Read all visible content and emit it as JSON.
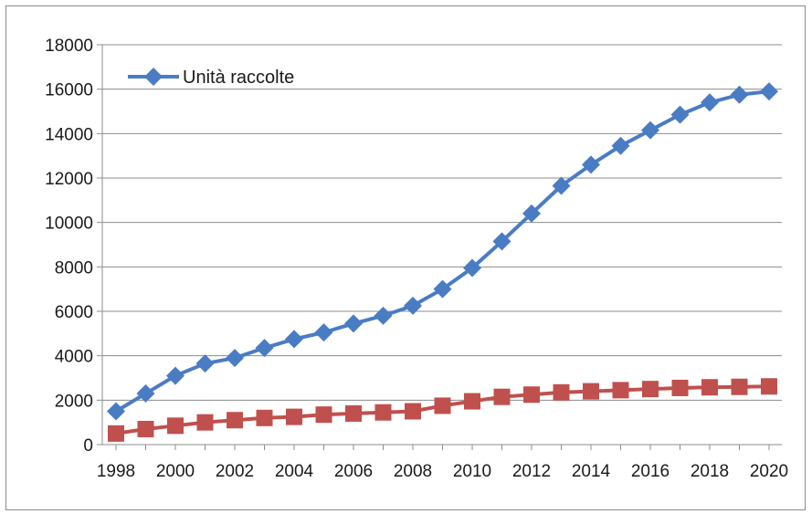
{
  "chart_data": {
    "type": "line",
    "x": [
      1998,
      1999,
      2000,
      2001,
      2002,
      2003,
      2004,
      2005,
      2006,
      2007,
      2008,
      2009,
      2010,
      2011,
      2012,
      2013,
      2014,
      2015,
      2016,
      2017,
      2018,
      2019,
      2020
    ],
    "xticks": [
      "1998",
      "2000",
      "2002",
      "2004",
      "2006",
      "2008",
      "2010",
      "2012",
      "2014",
      "2016",
      "2018",
      "2020"
    ],
    "yticks": [
      "0",
      "2000",
      "4000",
      "6000",
      "8000",
      "10000",
      "12000",
      "14000",
      "16000",
      "18000"
    ],
    "ylim": [
      0,
      18000
    ],
    "xlim": [
      1998,
      2020
    ],
    "grid": true,
    "legend_position": "top-left",
    "series": [
      {
        "name": "Unità raccolte",
        "color": "#4a7cc4",
        "marker": "diamond",
        "values": [
          1500,
          2300,
          3100,
          3650,
          3900,
          4350,
          4750,
          5050,
          5450,
          5800,
          6250,
          7000,
          7950,
          9150,
          10400,
          11650,
          12600,
          13450,
          14150,
          14850,
          15400,
          15750,
          15900
        ]
      },
      {
        "color": "#c0504d",
        "marker": "square",
        "values": [
          500,
          700,
          850,
          1000,
          1100,
          1200,
          1250,
          1350,
          1400,
          1450,
          1500,
          1750,
          1950,
          2150,
          2250,
          2350,
          2400,
          2450,
          2500,
          2550,
          2580,
          2600,
          2620
        ]
      }
    ]
  }
}
